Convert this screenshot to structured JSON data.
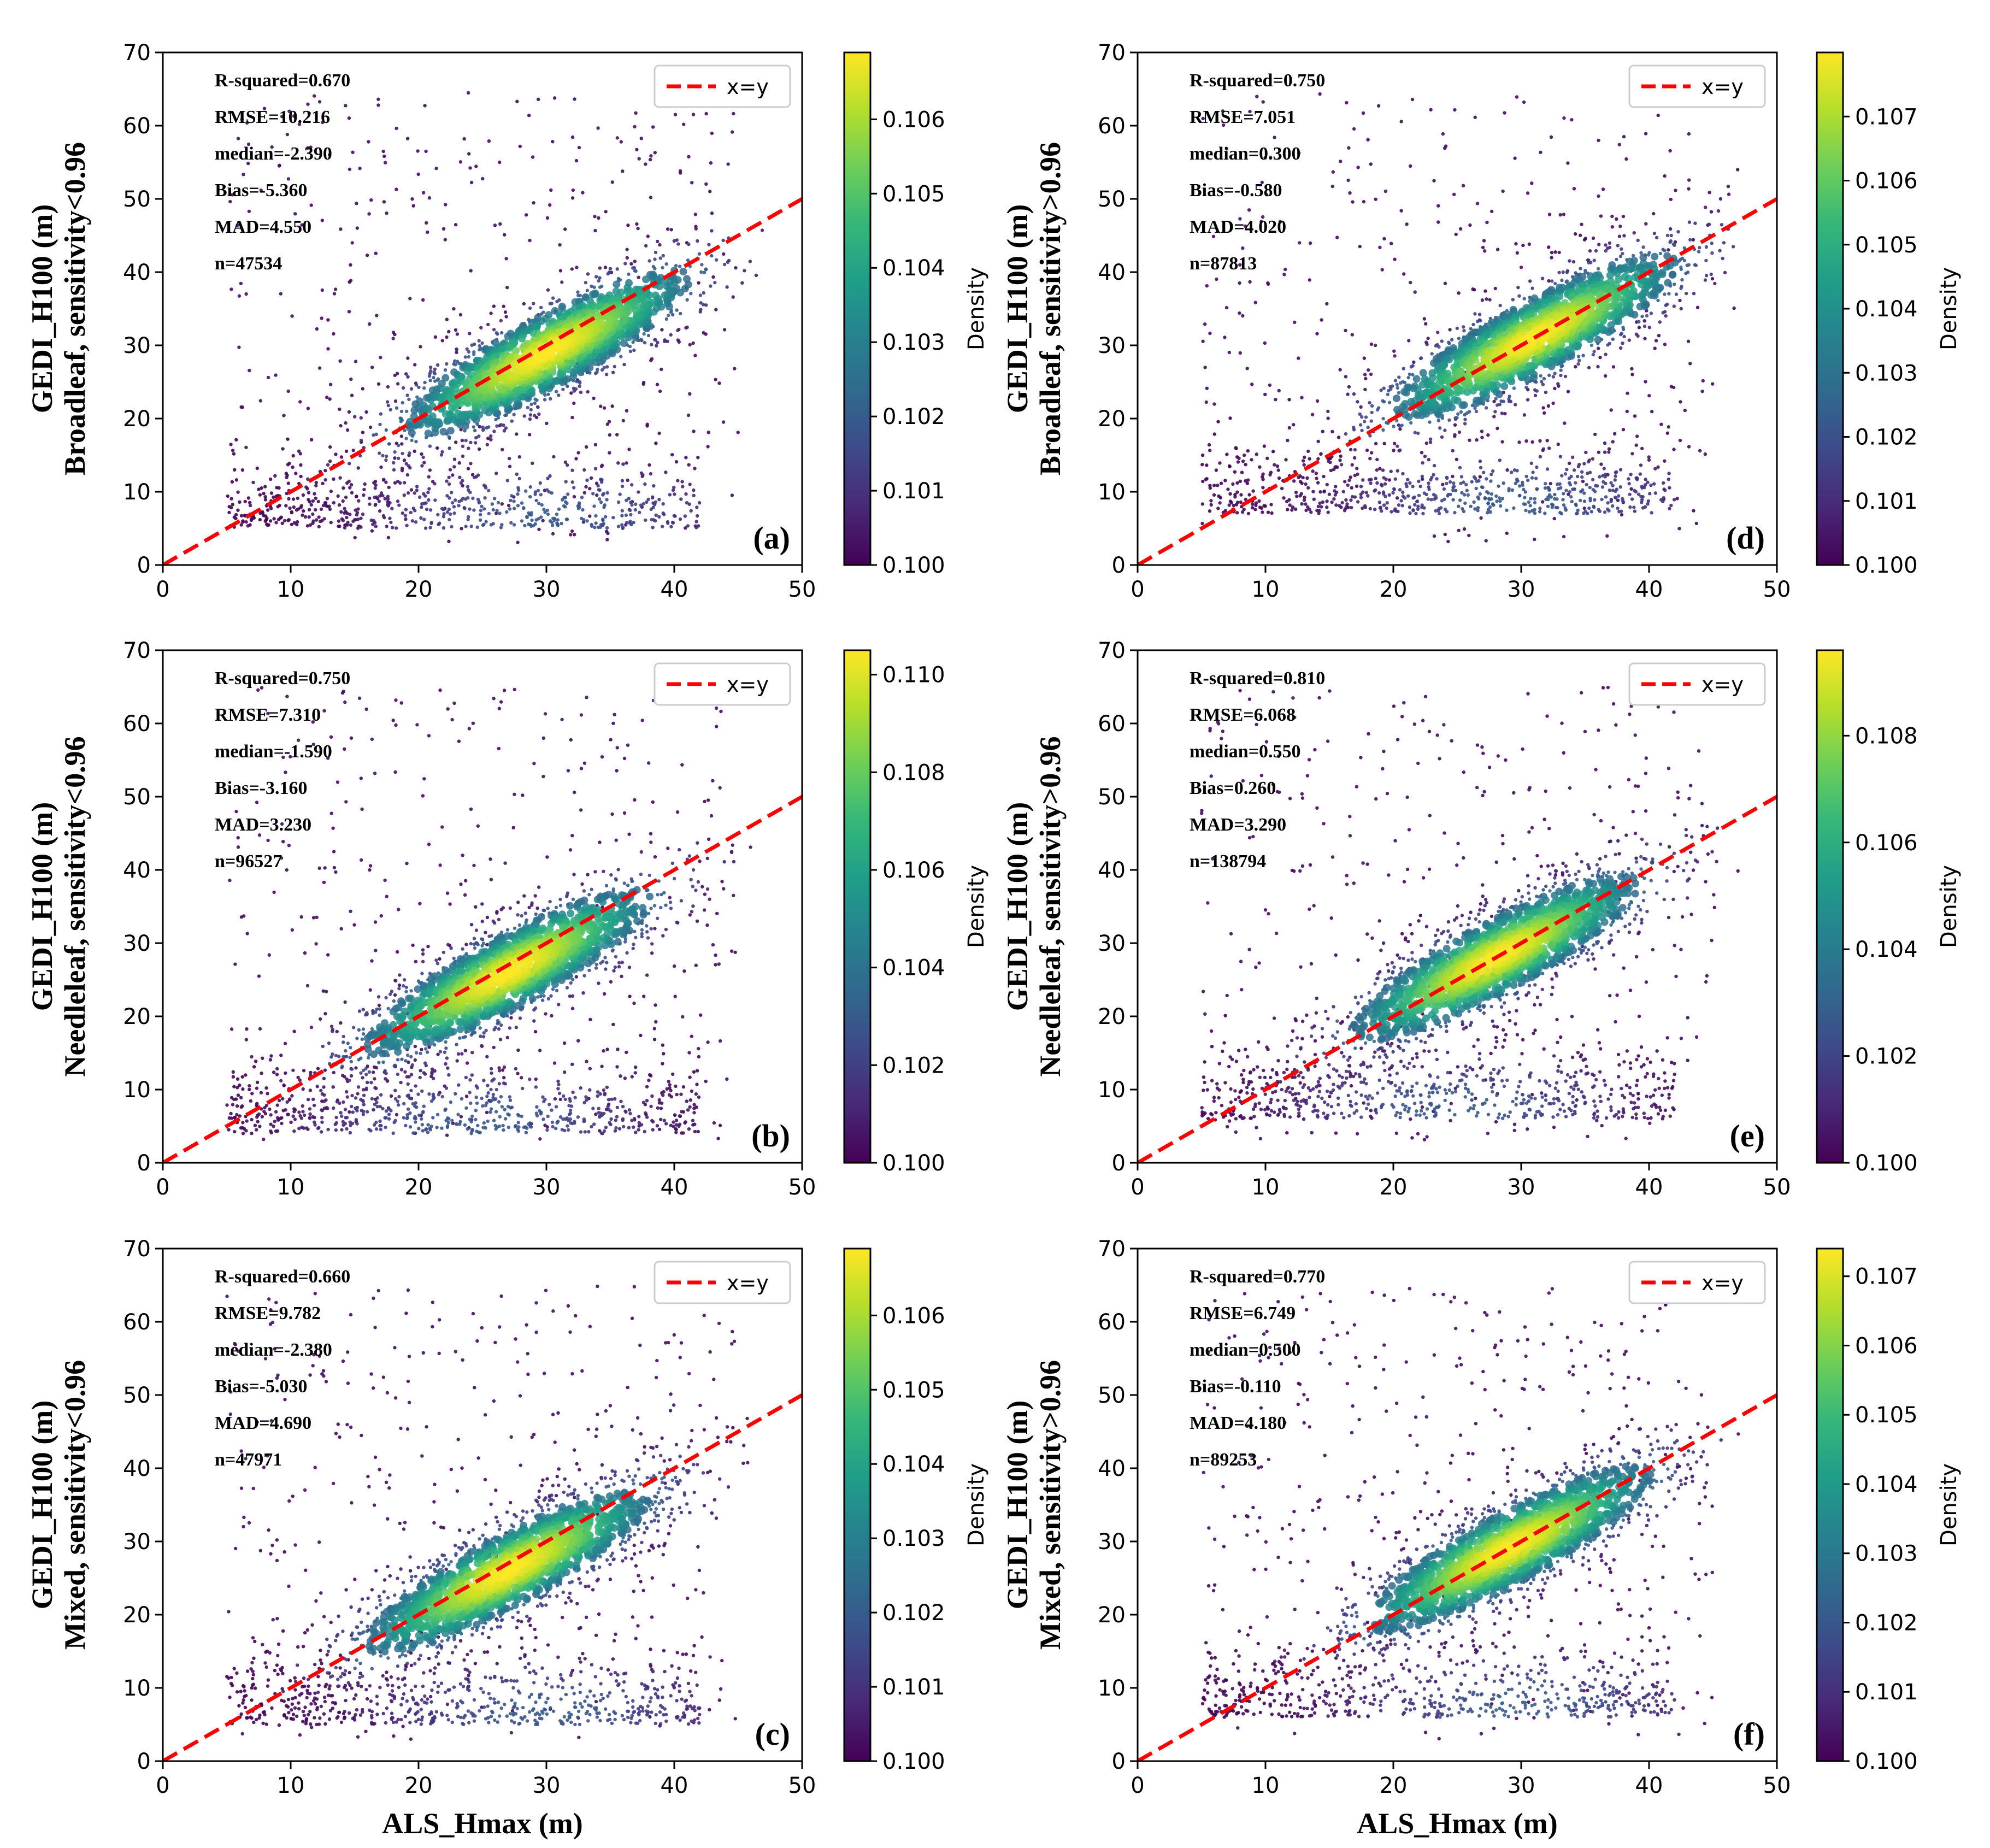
{
  "figure": {
    "xlabel": "ALS_Hmax (m)",
    "legend_label": "x=y",
    "colorbar_label": "Density"
  },
  "colors": {
    "line": "#ff0000",
    "viridis": [
      "#440154",
      "#482878",
      "#3e4989",
      "#31688e",
      "#26828e",
      "#1f9e89",
      "#35b779",
      "#6ece58",
      "#b5de2b",
      "#fde725"
    ]
  },
  "chart_data": [
    {
      "type": "scatter",
      "panel": "(a)",
      "ylabel_line1": "GEDI_H100 (m)",
      "ylabel_line2": "Broadleaf, sensitivity<0.96",
      "xlabel": "",
      "xlim": [
        0,
        50
      ],
      "ylim": [
        0,
        70
      ],
      "xticks": [
        "0",
        "10",
        "20",
        "30",
        "40",
        "50"
      ],
      "yticks": [
        "0",
        "10",
        "20",
        "30",
        "40",
        "50",
        "60",
        "70"
      ],
      "stats": [
        "R-squared=0.670",
        "RMSE=10.216",
        "median=-2.390",
        "Bias=-5.360",
        "MAD=4.550",
        "n=47534"
      ],
      "reference_line": {
        "label": "x=y",
        "x": [
          0,
          50
        ],
        "y": [
          0,
          50
        ]
      },
      "colorbar": {
        "range": [
          0.1,
          0.1069
        ],
        "ticks": [
          "0.100",
          "0.101",
          "0.102",
          "0.103",
          "0.104",
          "0.105",
          "0.106"
        ],
        "values": [
          0.1,
          0.101,
          0.102,
          0.103,
          0.104,
          0.105,
          0.106
        ]
      },
      "density_peak": {
        "x": 30,
        "y": 29
      },
      "secondary_cluster": {
        "x": 30,
        "y": 7
      }
    },
    {
      "type": "scatter",
      "panel": "(b)",
      "ylabel_line1": "GEDI_H100 (m)",
      "ylabel_line2": "Needleleaf, sensitivity<0.96",
      "xlabel": "",
      "xlim": [
        0,
        50
      ],
      "ylim": [
        0,
        70
      ],
      "xticks": [
        "0",
        "10",
        "20",
        "30",
        "40",
        "50"
      ],
      "yticks": [
        "0",
        "10",
        "20",
        "30",
        "40",
        "50",
        "60",
        "70"
      ],
      "stats": [
        "R-squared=0.750",
        "RMSE=7.310",
        "median=-1.590",
        "Bias=-3.160",
        "MAD=3.230",
        "n=96527"
      ],
      "reference_line": {
        "label": "x=y",
        "x": [
          0,
          50
        ],
        "y": [
          0,
          50
        ]
      },
      "colorbar": {
        "range": [
          0.1,
          0.1105
        ],
        "ticks": [
          "0.100",
          "0.102",
          "0.104",
          "0.106",
          "0.108",
          "0.110"
        ],
        "values": [
          0.1,
          0.102,
          0.104,
          0.106,
          0.108,
          0.11
        ]
      },
      "density_peak": {
        "x": 27,
        "y": 26
      },
      "secondary_cluster": {
        "x": 25,
        "y": 6
      }
    },
    {
      "type": "scatter",
      "panel": "(c)",
      "ylabel_line1": "GEDI_H100 (m)",
      "ylabel_line2": "Mixed, sensitivity<0.96",
      "xlabel": "ALS_Hmax (m)",
      "xlim": [
        0,
        50
      ],
      "ylim": [
        0,
        70
      ],
      "xticks": [
        "0",
        "10",
        "20",
        "30",
        "40",
        "50"
      ],
      "yticks": [
        "0",
        "10",
        "20",
        "30",
        "40",
        "50",
        "60",
        "70"
      ],
      "stats": [
        "R-squared=0.660",
        "RMSE=9.782",
        "median=-2.380",
        "Bias=-5.030",
        "MAD=4.690",
        "n=47971"
      ],
      "reference_line": {
        "label": "x=y",
        "x": [
          0,
          50
        ],
        "y": [
          0,
          50
        ]
      },
      "colorbar": {
        "range": [
          0.1,
          0.1069
        ],
        "ticks": [
          "0.100",
          "0.101",
          "0.102",
          "0.103",
          "0.104",
          "0.105",
          "0.106"
        ],
        "values": [
          0.1,
          0.101,
          0.102,
          0.103,
          0.104,
          0.105,
          0.106
        ]
      },
      "density_peak": {
        "x": 27,
        "y": 26
      },
      "secondary_cluster": {
        "x": 30,
        "y": 7
      }
    },
    {
      "type": "scatter",
      "panel": "(d)",
      "ylabel_line1": "GEDI_H100 (m)",
      "ylabel_line2": "Broadleaf, sensitivity>0.96",
      "xlabel": "",
      "xlim": [
        0,
        50
      ],
      "ylim": [
        0,
        70
      ],
      "xticks": [
        "0",
        "10",
        "20",
        "30",
        "40",
        "50"
      ],
      "yticks": [
        "0",
        "10",
        "20",
        "30",
        "40",
        "50",
        "60",
        "70"
      ],
      "stats": [
        "R-squared=0.750",
        "RMSE=7.051",
        "median=0.300",
        "Bias=-0.580",
        "MAD=4.020",
        "n=87813"
      ],
      "reference_line": {
        "label": "x=y",
        "x": [
          0,
          50
        ],
        "y": [
          0,
          50
        ]
      },
      "colorbar": {
        "range": [
          0.1,
          0.108
        ],
        "ticks": [
          "0.100",
          "0.101",
          "0.102",
          "0.103",
          "0.104",
          "0.105",
          "0.106",
          "0.107"
        ],
        "values": [
          0.1,
          0.101,
          0.102,
          0.103,
          0.104,
          0.105,
          0.106,
          0.107
        ]
      },
      "density_peak": {
        "x": 31,
        "y": 31
      },
      "secondary_cluster": {
        "x": 30,
        "y": 9
      }
    },
    {
      "type": "scatter",
      "panel": "(e)",
      "ylabel_line1": "GEDI_H100 (m)",
      "ylabel_line2": "Needleleaf, sensitivity>0.96",
      "xlabel": "",
      "xlim": [
        0,
        50
      ],
      "ylim": [
        0,
        70
      ],
      "xticks": [
        "0",
        "10",
        "20",
        "30",
        "40",
        "50"
      ],
      "yticks": [
        "0",
        "10",
        "20",
        "30",
        "40",
        "50",
        "60",
        "70"
      ],
      "stats": [
        "R-squared=0.810",
        "RMSE=6.068",
        "median=0.550",
        "Bias=0.260",
        "MAD=3.290",
        "n=138794"
      ],
      "reference_line": {
        "label": "x=y",
        "x": [
          0,
          50
        ],
        "y": [
          0,
          50
        ]
      },
      "colorbar": {
        "range": [
          0.1,
          0.1096
        ],
        "ticks": [
          "0.100",
          "0.102",
          "0.104",
          "0.106",
          "0.108"
        ],
        "values": [
          0.1,
          0.102,
          0.104,
          0.106,
          0.108
        ]
      },
      "density_peak": {
        "x": 28,
        "y": 28
      },
      "secondary_cluster": {
        "x": 25,
        "y": 8
      }
    },
    {
      "type": "scatter",
      "panel": "(f)",
      "ylabel_line1": "GEDI_H100 (m)",
      "ylabel_line2": "Mixed, sensitivity>0.96",
      "xlabel": "ALS_Hmax (m)",
      "xlim": [
        0,
        50
      ],
      "ylim": [
        0,
        70
      ],
      "xticks": [
        "0",
        "10",
        "20",
        "30",
        "40",
        "50"
      ],
      "yticks": [
        "0",
        "10",
        "20",
        "30",
        "40",
        "50",
        "60",
        "70"
      ],
      "stats": [
        "R-squared=0.770",
        "RMSE=6.749",
        "median=0.500",
        "Bias=-0.110",
        "MAD=4.180",
        "n=89253"
      ],
      "reference_line": {
        "label": "x=y",
        "x": [
          0,
          50
        ],
        "y": [
          0,
          50
        ]
      },
      "colorbar": {
        "range": [
          0.1,
          0.1074
        ],
        "ticks": [
          "0.100",
          "0.101",
          "0.102",
          "0.103",
          "0.104",
          "0.105",
          "0.106",
          "0.107"
        ],
        "values": [
          0.1,
          0.101,
          0.102,
          0.103,
          0.104,
          0.105,
          0.106,
          0.107
        ]
      },
      "density_peak": {
        "x": 29,
        "y": 29
      },
      "secondary_cluster": {
        "x": 30,
        "y": 8
      }
    }
  ]
}
